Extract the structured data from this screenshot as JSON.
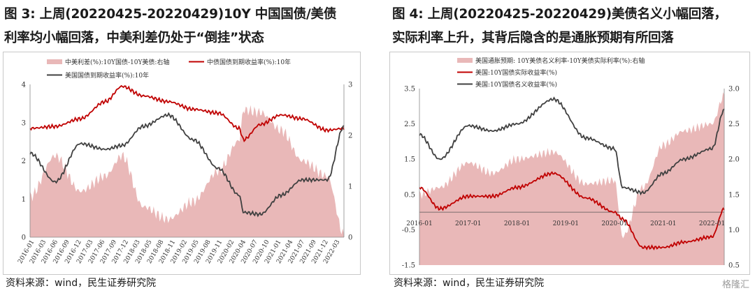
{
  "left": {
    "title_line1": "图 3: 上周(20220425-20220429)10Y 中国国债/美债",
    "title_line2": "利率均小幅回落，中美利差仍处于“倒挂”状态",
    "source": "资料来源：wind，民生证券研究院",
    "legend": {
      "spread": "中美利差(%):10Y国债-10Y美债:右轴",
      "cn": "中债国债到期收益率(%):10年",
      "us": "美国国债到期收益率(%):10年"
    },
    "colors": {
      "spread": "#e9b8b8",
      "cn": "#c00000",
      "us": "#404040"
    },
    "left_ticks": [
      "4",
      "3",
      "2",
      "1",
      "0"
    ],
    "right_ticks": [
      "3",
      "2",
      "1",
      "0"
    ],
    "x_ticks": [
      "2016-01",
      "2016-03",
      "2016-06",
      "2016-09",
      "2016-12",
      "2017-03",
      "2017-06",
      "2017-09",
      "2017-12",
      "2018-03",
      "2018-05",
      "2018-08",
      "2018-11",
      "2019-02",
      "2019-05",
      "2019-08",
      "2019-11",
      "2020-02",
      "2020-04",
      "2020-07",
      "2020-10",
      "2021-01",
      "2021-04",
      "2021-07",
      "2021-09",
      "2021-12",
      "2022-03"
    ]
  },
  "right": {
    "title_line1": "图 4: 上周(20220425-20220429)美债名义小幅回落，",
    "title_line2": "实际利率上升，其背后隐含的是通胀预期有所回落",
    "source": "资料来源：wind，民生证券研究院",
    "legend": {
      "breakeven": "美国通胀预期: 10Y美债名义利率-10Y美债实际利率(%):右轴",
      "real": "美国:10Y国债实际收益率(%)",
      "nominal": "美国:10Y国债名义收益率(%)"
    },
    "colors": {
      "breakeven": "#e9b8b8",
      "real": "#c00000",
      "nominal": "#404040"
    },
    "left_ticks": [
      "3.5",
      "2.5",
      "1.5",
      "0.5",
      "-0.5",
      "-1.5"
    ],
    "right_ticks": [
      "3.0",
      "2.5",
      "2.0",
      "1.5",
      "1.0",
      "0.5"
    ],
    "x_ticks": [
      "2016-01",
      "2017-01",
      "2018-01",
      "2019-01",
      "2020-01",
      "2021-01",
      "2022-01"
    ]
  },
  "watermark": "格隆汇",
  "chart_data": [
    {
      "type": "line",
      "title": "图 3: 上周(20220425-20220429)10Y 中国国债/美债利率均小幅回落，中美利差仍处于“倒挂”状态",
      "ylim": [
        0,
        4
      ],
      "y2lim": [
        0,
        3
      ],
      "x": [
        "2016-01",
        "2016-07",
        "2017-01",
        "2017-07",
        "2017-11",
        "2018-04",
        "2018-10",
        "2019-04",
        "2019-10",
        "2020-03",
        "2020-04",
        "2020-08",
        "2021-01",
        "2021-06",
        "2021-12",
        "2022-04"
      ],
      "series": [
        {
          "name": "中债国债到期收益率(%):10年",
          "values": [
            2.85,
            2.9,
            3.1,
            3.55,
            3.95,
            3.7,
            3.55,
            3.35,
            3.25,
            2.85,
            2.55,
            2.95,
            3.2,
            3.1,
            2.8,
            2.85
          ]
        },
        {
          "name": "美国国债到期收益率(%):10年",
          "values": [
            2.2,
            1.45,
            2.45,
            2.3,
            2.4,
            2.9,
            3.2,
            2.55,
            1.8,
            1.1,
            0.65,
            0.6,
            1.1,
            1.5,
            1.5,
            2.9
          ]
        },
        {
          "name": "中美利差(%):10Y国债-10Y美债:右轴",
          "axis": "right",
          "values": [
            0.8,
            1.6,
            0.9,
            1.2,
            1.6,
            0.6,
            0.35,
            0.7,
            1.3,
            1.9,
            2.5,
            2.45,
            2.1,
            1.5,
            1.2,
            0.05
          ]
        }
      ]
    },
    {
      "type": "line",
      "title": "图 4: 上周(20220425-20220429)美债名义小幅回落，实际利率上升，其背后隐含的是通胀预期有所回落",
      "ylim": [
        -1.5,
        3.5
      ],
      "y2lim": [
        0.5,
        3.0
      ],
      "x": [
        "2016-01",
        "2016-06",
        "2017-01",
        "2017-07",
        "2018-01",
        "2018-10",
        "2019-06",
        "2020-01",
        "2020-03",
        "2020-08",
        "2021-01",
        "2021-06",
        "2022-01",
        "2022-04"
      ],
      "series": [
        {
          "name": "美国:10Y国债实际收益率(%)",
          "values": [
            0.7,
            0.1,
            0.45,
            0.45,
            0.7,
            1.1,
            0.4,
            0.0,
            -0.2,
            -1.0,
            -1.0,
            -0.85,
            -0.7,
            0.1
          ]
        },
        {
          "name": "美国:10Y国债名义收益率(%)",
          "values": [
            2.2,
            1.5,
            2.45,
            2.3,
            2.5,
            3.2,
            2.1,
            1.8,
            0.7,
            0.55,
            1.1,
            1.5,
            1.8,
            2.9
          ]
        },
        {
          "name": "美国通胀预期: 10Y美债名义利率-10Y美债实际利率(%):右轴",
          "axis": "right",
          "values": [
            1.5,
            1.6,
            1.95,
            1.8,
            2.0,
            2.1,
            1.65,
            1.7,
            0.9,
            1.6,
            2.2,
            2.4,
            2.5,
            2.9
          ]
        }
      ]
    }
  ]
}
